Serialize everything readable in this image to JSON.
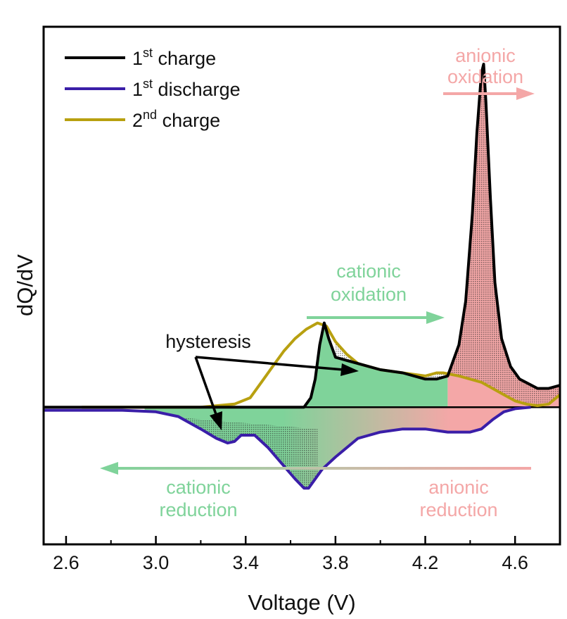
{
  "chart_data": {
    "type": "line",
    "xlabel": "Voltage (V)",
    "ylabel": "dQ/dV",
    "xlim": [
      2.5,
      4.8
    ],
    "ylim": [
      -0.44,
      1.22
    ],
    "x_ticks": [
      "2.6",
      "3.0",
      "3.4",
      "3.8",
      "4.2",
      "4.6"
    ],
    "x_tick_values": [
      2.6,
      3.0,
      3.4,
      3.8,
      4.2,
      4.6
    ],
    "y_tick_labels_shown": false,
    "colors": {
      "first_charge": "#000000",
      "first_discharge": "#3a1ea8",
      "second_charge": "#b8a010",
      "cationic": "#7fd39a",
      "anionic": "#f4a7a7"
    },
    "legend": {
      "placement": "top-left",
      "entries": [
        {
          "series": "first_charge",
          "base": "1",
          "sup": "st",
          "rest": " charge"
        },
        {
          "series": "first_discharge",
          "base": "1",
          "sup": "st",
          "rest": " discharge"
        },
        {
          "series": "second_charge",
          "base": "2",
          "sup": "nd",
          "rest": " charge"
        }
      ]
    },
    "series": [
      {
        "key": "first_charge",
        "x": [
          2.5,
          3.6,
          3.66,
          3.69,
          3.71,
          3.73,
          3.75,
          3.77,
          3.8,
          3.85,
          3.9,
          4.0,
          4.1,
          4.2,
          4.25,
          4.3,
          4.35,
          4.38,
          4.41,
          4.43,
          4.45,
          4.46,
          4.47,
          4.49,
          4.51,
          4.54,
          4.58,
          4.62,
          4.7,
          4.75,
          4.8
        ],
        "y": [
          0.0,
          0.0,
          0.0,
          0.03,
          0.09,
          0.2,
          0.27,
          0.22,
          0.16,
          0.15,
          0.14,
          0.12,
          0.11,
          0.09,
          0.09,
          0.1,
          0.2,
          0.34,
          0.62,
          0.88,
          1.07,
          1.1,
          0.98,
          0.67,
          0.4,
          0.22,
          0.13,
          0.09,
          0.06,
          0.06,
          0.07
        ]
      },
      {
        "key": "first_discharge",
        "x": [
          2.5,
          2.85,
          3.0,
          3.1,
          3.2,
          3.27,
          3.32,
          3.35,
          3.38,
          3.44,
          3.5,
          3.56,
          3.62,
          3.66,
          3.68,
          3.7,
          3.74,
          3.8,
          3.9,
          4.0,
          4.1,
          4.2,
          4.3,
          4.4,
          4.45,
          4.5,
          4.55,
          4.6,
          4.67
        ],
        "y": [
          -0.01,
          -0.01,
          -0.015,
          -0.03,
          -0.07,
          -0.1,
          -0.115,
          -0.11,
          -0.09,
          -0.09,
          -0.13,
          -0.18,
          -0.23,
          -0.26,
          -0.26,
          -0.24,
          -0.2,
          -0.16,
          -0.1,
          -0.08,
          -0.07,
          -0.07,
          -0.08,
          -0.08,
          -0.07,
          -0.04,
          -0.015,
          -0.005,
          0.0
        ]
      },
      {
        "key": "second_charge",
        "x": [
          2.67,
          3.0,
          3.2,
          3.35,
          3.42,
          3.47,
          3.52,
          3.57,
          3.62,
          3.67,
          3.72,
          3.76,
          3.8,
          3.85,
          3.9,
          4.0,
          4.1,
          4.2,
          4.25,
          4.28,
          4.35,
          4.4,
          4.45,
          4.5,
          4.55,
          4.6,
          4.65,
          4.7,
          4.75,
          4.8
        ],
        "y": [
          0.0,
          0.0,
          0.0,
          0.01,
          0.03,
          0.08,
          0.13,
          0.18,
          0.22,
          0.25,
          0.27,
          0.26,
          0.21,
          0.17,
          0.14,
          0.12,
          0.11,
          0.1,
          0.11,
          0.11,
          0.1,
          0.09,
          0.08,
          0.06,
          0.04,
          0.02,
          0.01,
          0.005,
          0.01,
          0.04
        ]
      }
    ],
    "annotations": {
      "anionic_oxidation": [
        "anionic",
        "oxidation"
      ],
      "cationic_oxidation": [
        "cationic",
        "oxidation"
      ],
      "cationic_reduction": [
        "cationic",
        "reduction"
      ],
      "anionic_reduction": [
        "anionic",
        "reduction"
      ],
      "hysteresis": "hysteresis"
    }
  }
}
